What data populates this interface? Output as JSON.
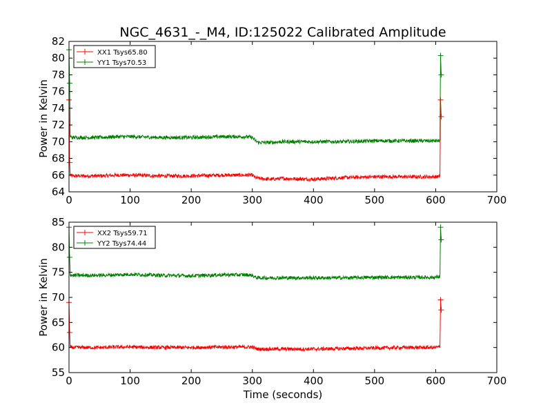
{
  "chart_data": [
    {
      "type": "line",
      "title": "NGC_4631_-_M4, ID:125022 Calibrated Amplitude",
      "xlabel": "",
      "ylabel": "Power in Kelvin",
      "xlim": [
        0,
        700
      ],
      "ylim": [
        64,
        82
      ],
      "xticks": [
        0,
        100,
        200,
        300,
        400,
        500,
        600,
        700
      ],
      "yticks": [
        64,
        66,
        68,
        70,
        72,
        74,
        76,
        78,
        80,
        82
      ],
      "legend_position": "upper-left",
      "grid": false,
      "series": [
        {
          "name": "XX1 Tsys65.80",
          "color": "#ff0000",
          "x": [
            0,
            1,
            2,
            5,
            20,
            50,
            80,
            100,
            150,
            200,
            250,
            290,
            300,
            305,
            310,
            330,
            350,
            400,
            450,
            500,
            550,
            600,
            605,
            607,
            608,
            609
          ],
          "y": [
            75,
            67.5,
            66.0,
            65.9,
            65.9,
            65.9,
            66.0,
            66.0,
            65.9,
            65.9,
            66.0,
            66.0,
            66.0,
            65.7,
            65.6,
            65.5,
            65.6,
            65.5,
            65.7,
            65.8,
            65.8,
            65.8,
            65.8,
            65.9,
            75.0,
            73.0
          ]
        },
        {
          "name": "YY1 Tsys70.53",
          "color": "#008000",
          "x": [
            0,
            1,
            2,
            5,
            20,
            50,
            80,
            100,
            150,
            200,
            250,
            290,
            300,
            305,
            310,
            330,
            350,
            400,
            450,
            500,
            550,
            600,
            605,
            607,
            608,
            609
          ],
          "y": [
            81,
            77.0,
            70.6,
            70.5,
            70.5,
            70.5,
            70.6,
            70.6,
            70.5,
            70.5,
            70.6,
            70.6,
            70.5,
            70.1,
            69.9,
            69.9,
            70.0,
            70.0,
            70.0,
            70.1,
            70.1,
            70.1,
            70.1,
            70.2,
            80.3,
            78.0
          ]
        }
      ]
    },
    {
      "type": "line",
      "title": "",
      "xlabel": "Time (seconds)",
      "ylabel": "Power in Kelvin",
      "xlim": [
        0,
        700
      ],
      "ylim": [
        55,
        85
      ],
      "xticks": [
        0,
        100,
        200,
        300,
        400,
        500,
        600,
        700
      ],
      "yticks": [
        55,
        60,
        65,
        70,
        75,
        80,
        85
      ],
      "legend_position": "upper-left",
      "grid": false,
      "series": [
        {
          "name": "XX2 Tsys59.71",
          "color": "#ff0000",
          "x": [
            0,
            1,
            2,
            5,
            20,
            50,
            80,
            100,
            150,
            200,
            250,
            290,
            300,
            305,
            310,
            330,
            350,
            400,
            450,
            500,
            550,
            600,
            605,
            607,
            608,
            609
          ],
          "y": [
            69,
            63.0,
            60.1,
            60.0,
            60.0,
            60.0,
            60.1,
            60.1,
            60.0,
            60.0,
            60.1,
            60.1,
            60.1,
            59.8,
            59.7,
            59.7,
            59.7,
            59.7,
            59.8,
            59.9,
            60.0,
            60.0,
            60.1,
            60.2,
            69.5,
            67.5
          ]
        },
        {
          "name": "YY2 Tsys74.44",
          "color": "#008000",
          "x": [
            0,
            1,
            2,
            5,
            20,
            50,
            80,
            100,
            150,
            200,
            250,
            290,
            300,
            305,
            310,
            330,
            350,
            400,
            450,
            500,
            550,
            600,
            605,
            607,
            608,
            609
          ],
          "y": [
            84,
            78.0,
            74.5,
            74.4,
            74.4,
            74.4,
            74.5,
            74.6,
            74.4,
            74.3,
            74.5,
            74.5,
            74.4,
            74.0,
            73.9,
            73.9,
            73.9,
            73.9,
            73.9,
            74.0,
            74.0,
            74.0,
            74.1,
            74.2,
            84.0,
            81.5
          ]
        }
      ]
    }
  ]
}
